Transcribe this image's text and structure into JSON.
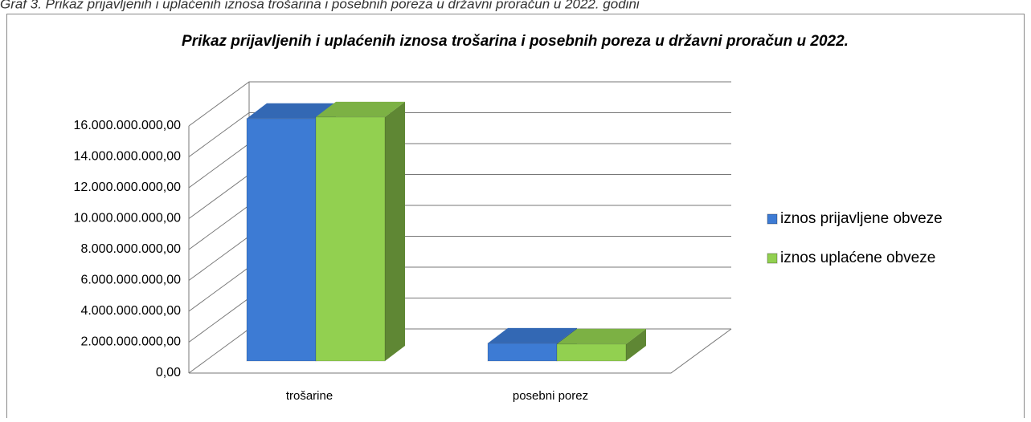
{
  "caption": "Graf 3. Prikaz prijavljenih i uplaćenih iznosa trošarina i posebnih poreza u državni proračun u 2022. godini",
  "chart_data": {
    "type": "bar3d",
    "title": "Prikaz prijavljenih i uplaćenih iznosa trošarina i posebnih poreza u državni proračun u 2022.",
    "categories": [
      "trošarine",
      "posebni porez"
    ],
    "series": [
      {
        "name": "iznos prijavljene obveze",
        "color": "#3d7bd4",
        "values": [
          15700000000,
          1150000000
        ]
      },
      {
        "name": "iznos uplaćene obveze",
        "color": "#92d050",
        "values": [
          15800000000,
          1100000000
        ]
      }
    ],
    "ylim": [
      0,
      16000000000
    ],
    "yticks": [
      {
        "value": 0,
        "label": "0,00"
      },
      {
        "value": 2000000000,
        "label": "2.000.000.000,00"
      },
      {
        "value": 4000000000,
        "label": "4.000.000.000,00"
      },
      {
        "value": 6000000000,
        "label": "6.000.000.000,00"
      },
      {
        "value": 8000000000,
        "label": "8.000.000.000,00"
      },
      {
        "value": 10000000000,
        "label": "10.000.000.000,00"
      },
      {
        "value": 12000000000,
        "label": "12.000.000.000,00"
      },
      {
        "value": 14000000000,
        "label": "14.000.000.000,00"
      },
      {
        "value": 16000000000,
        "label": "16.000.000.000,00"
      }
    ],
    "grid": true,
    "legend": "right"
  }
}
